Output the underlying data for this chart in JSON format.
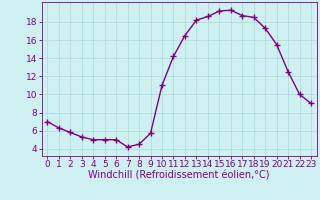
{
  "x": [
    0,
    1,
    2,
    3,
    4,
    5,
    6,
    7,
    8,
    9,
    10,
    11,
    12,
    13,
    14,
    15,
    16,
    17,
    18,
    19,
    20,
    21,
    22,
    23
  ],
  "y": [
    7.0,
    6.3,
    5.8,
    5.3,
    5.0,
    5.0,
    5.0,
    4.2,
    4.5,
    5.7,
    11.0,
    14.2,
    16.5,
    18.2,
    18.6,
    19.2,
    19.3,
    18.7,
    18.5,
    17.3,
    15.5,
    12.5,
    10.0,
    9.0
  ],
  "line_color": "#800080",
  "marker": "+",
  "marker_size": 4,
  "marker_lw": 1.0,
  "bg_color": "#cff0f0",
  "grid_color": "#aadddd",
  "xlabel": "Windchill (Refroidissement éolien,°C)",
  "xlabel_fontsize": 7,
  "ylabel_ticks": [
    4,
    6,
    8,
    10,
    12,
    14,
    16,
    18
  ],
  "xtick_labels": [
    "0",
    "1",
    "2",
    "3",
    "4",
    "5",
    "6",
    "7",
    "8",
    "9",
    "10",
    "11",
    "12",
    "13",
    "14",
    "15",
    "16",
    "17",
    "18",
    "19",
    "20",
    "21",
    "22",
    "23"
  ],
  "xlim": [
    -0.5,
    23.5
  ],
  "ylim": [
    3.2,
    20.2
  ],
  "tick_fontsize": 6.5,
  "label_color": "#800080",
  "line_width": 1.0
}
